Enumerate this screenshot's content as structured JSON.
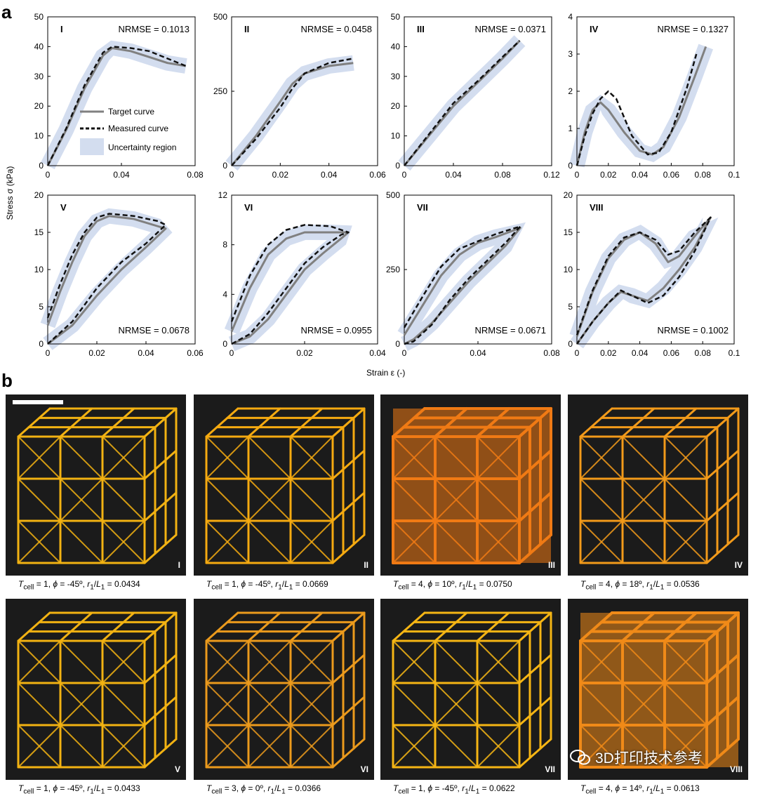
{
  "panel_a_label": "a",
  "panel_b_label": "b",
  "y_axis_label": "Stress σ (kPa)",
  "x_axis_label": "Strain ε (-)",
  "legend": {
    "target": "Target curve",
    "measured": "Measured curve",
    "uncertainty": "Uncertainty region"
  },
  "colors": {
    "target": "#808080",
    "measured": "#111111",
    "band": "#d3ddef"
  },
  "chart_data": [
    {
      "type": "line",
      "id": "I",
      "nrmse": "NRMSE = 0.1013",
      "xlim": [
        0,
        0.08
      ],
      "ylim": [
        0,
        50
      ],
      "xticks": [
        "0",
        "0.04",
        "0.08"
      ],
      "xtick_vals": [
        0,
        0.04,
        0.08
      ],
      "yticks": [
        "0",
        "10",
        "20",
        "30",
        "40",
        "50"
      ],
      "ytick_vals": [
        0,
        10,
        20,
        30,
        40,
        50
      ],
      "target": [
        [
          0,
          0
        ],
        [
          0.01,
          12
        ],
        [
          0.02,
          26
        ],
        [
          0.03,
          37
        ],
        [
          0.035,
          39.5
        ],
        [
          0.045,
          38.5
        ],
        [
          0.055,
          36.5
        ],
        [
          0.065,
          34.5
        ],
        [
          0.075,
          33.5
        ]
      ],
      "measured": [
        [
          0,
          0
        ],
        [
          0.01,
          12.5
        ],
        [
          0.02,
          27
        ],
        [
          0.03,
          38
        ],
        [
          0.035,
          40
        ],
        [
          0.045,
          39.5
        ],
        [
          0.055,
          38.5
        ],
        [
          0.065,
          36
        ],
        [
          0.075,
          33.5
        ]
      ]
    },
    {
      "type": "line",
      "id": "II",
      "nrmse": "NRMSE = 0.0458",
      "xlim": [
        0,
        0.06
      ],
      "ylim": [
        0,
        500
      ],
      "xticks": [
        "0",
        "0.02",
        "0.04",
        "0.06"
      ],
      "xtick_vals": [
        0,
        0.02,
        0.04,
        0.06
      ],
      "yticks": [
        "0",
        "250",
        "500"
      ],
      "ytick_vals": [
        0,
        250,
        500
      ],
      "target": [
        [
          0,
          0
        ],
        [
          0.01,
          100
        ],
        [
          0.02,
          215
        ],
        [
          0.025,
          275
        ],
        [
          0.03,
          310
        ],
        [
          0.04,
          335
        ],
        [
          0.05,
          345
        ]
      ],
      "measured": [
        [
          0,
          0
        ],
        [
          0.01,
          90
        ],
        [
          0.02,
          195
        ],
        [
          0.025,
          260
        ],
        [
          0.03,
          310
        ],
        [
          0.04,
          345
        ],
        [
          0.05,
          360
        ]
      ]
    },
    {
      "type": "line",
      "id": "III",
      "nrmse": "NRMSE = 0.0371",
      "xlim": [
        0,
        0.12
      ],
      "ylim": [
        0,
        50
      ],
      "xticks": [
        "0",
        "0.04",
        "0.08",
        "0.12"
      ],
      "xtick_vals": [
        0,
        0.04,
        0.08,
        0.12
      ],
      "yticks": [
        "0",
        "10",
        "20",
        "30",
        "40",
        "50"
      ],
      "ytick_vals": [
        0,
        10,
        20,
        30,
        40,
        50
      ],
      "target": [
        [
          0,
          0
        ],
        [
          0.02,
          10
        ],
        [
          0.04,
          20
        ],
        [
          0.06,
          28
        ],
        [
          0.08,
          36
        ],
        [
          0.094,
          42
        ]
      ],
      "measured": [
        [
          0,
          0
        ],
        [
          0.02,
          10.5
        ],
        [
          0.04,
          21
        ],
        [
          0.06,
          28.5
        ],
        [
          0.08,
          36.5
        ],
        [
          0.094,
          42
        ]
      ]
    },
    {
      "type": "line",
      "id": "IV",
      "nrmse": "NRMSE = 0.1327",
      "xlim": [
        0,
        0.1
      ],
      "ylim": [
        0,
        4
      ],
      "xticks": [
        "0",
        "0.02",
        "0.04",
        "0.06",
        "0.08",
        "0.1"
      ],
      "xtick_vals": [
        0,
        0.02,
        0.04,
        0.06,
        0.08,
        0.1
      ],
      "yticks": [
        "0",
        "1",
        "2",
        "3",
        "4"
      ],
      "ytick_vals": [
        0,
        1,
        2,
        3,
        4
      ],
      "target": [
        [
          0,
          0
        ],
        [
          0.005,
          0.9
        ],
        [
          0.01,
          1.5
        ],
        [
          0.015,
          1.7
        ],
        [
          0.02,
          1.5
        ],
        [
          0.03,
          0.9
        ],
        [
          0.04,
          0.4
        ],
        [
          0.048,
          0.3
        ],
        [
          0.055,
          0.5
        ],
        [
          0.065,
          1.3
        ],
        [
          0.075,
          2.4
        ],
        [
          0.082,
          3.2
        ]
      ],
      "measured": [
        [
          0,
          0
        ],
        [
          0.005,
          0.8
        ],
        [
          0.01,
          1.4
        ],
        [
          0.015,
          1.8
        ],
        [
          0.02,
          2.0
        ],
        [
          0.025,
          1.8
        ],
        [
          0.035,
          0.8
        ],
        [
          0.045,
          0.3
        ],
        [
          0.052,
          0.35
        ],
        [
          0.06,
          0.9
        ],
        [
          0.07,
          2.1
        ],
        [
          0.076,
          3.0
        ]
      ]
    },
    {
      "type": "line",
      "id": "V",
      "nrmse": "NRMSE = 0.0678",
      "xlim": [
        0,
        0.06
      ],
      "ylim": [
        0,
        20
      ],
      "xticks": [
        "0",
        "0.02",
        "0.04",
        "0.06"
      ],
      "xtick_vals": [
        0,
        0.02,
        0.04,
        0.06
      ],
      "yticks": [
        "0",
        "5",
        "10",
        "15",
        "20"
      ],
      "ytick_vals": [
        0,
        5,
        10,
        15,
        20
      ],
      "target": [
        [
          0,
          2.5
        ],
        [
          0.005,
          7
        ],
        [
          0.01,
          11
        ],
        [
          0.015,
          14.5
        ],
        [
          0.02,
          16.5
        ],
        [
          0.025,
          17.2
        ],
        [
          0.035,
          16.8
        ],
        [
          0.045,
          15.8
        ],
        [
          0.048,
          15.5
        ],
        [
          0.04,
          13
        ],
        [
          0.03,
          10
        ],
        [
          0.02,
          6.5
        ],
        [
          0.01,
          2.5
        ],
        [
          0,
          0
        ]
      ],
      "measured": [
        [
          0,
          3.5
        ],
        [
          0.005,
          8
        ],
        [
          0.01,
          12
        ],
        [
          0.015,
          15
        ],
        [
          0.02,
          17
        ],
        [
          0.025,
          17.5
        ],
        [
          0.035,
          17.2
        ],
        [
          0.045,
          16.5
        ],
        [
          0.048,
          16
        ],
        [
          0.04,
          13.5
        ],
        [
          0.03,
          11
        ],
        [
          0.02,
          7.5
        ],
        [
          0.01,
          3
        ],
        [
          0,
          0
        ]
      ]
    },
    {
      "type": "line",
      "id": "VI",
      "nrmse": "NRMSE = 0.0955",
      "xlim": [
        0,
        0.04
      ],
      "ylim": [
        0,
        12
      ],
      "xticks": [
        "0",
        "0.02",
        "0.04"
      ],
      "xtick_vals": [
        0,
        0.02,
        0.04
      ],
      "yticks": [
        "0",
        "4",
        "8",
        "12"
      ],
      "ytick_vals": [
        0,
        4,
        8,
        12
      ],
      "target": [
        [
          0,
          1
        ],
        [
          0.005,
          4.5
        ],
        [
          0.01,
          7.2
        ],
        [
          0.015,
          8.5
        ],
        [
          0.02,
          9
        ],
        [
          0.027,
          9
        ],
        [
          0.032,
          9
        ],
        [
          0.03,
          8.5
        ],
        [
          0.025,
          7.3
        ],
        [
          0.02,
          6
        ],
        [
          0.015,
          4
        ],
        [
          0.01,
          2
        ],
        [
          0.005,
          0.6
        ],
        [
          0,
          0
        ]
      ],
      "measured": [
        [
          0,
          1.8
        ],
        [
          0.005,
          5.5
        ],
        [
          0.01,
          8
        ],
        [
          0.015,
          9.2
        ],
        [
          0.02,
          9.6
        ],
        [
          0.027,
          9.5
        ],
        [
          0.032,
          9
        ],
        [
          0.03,
          8.8
        ],
        [
          0.025,
          7.8
        ],
        [
          0.02,
          6.5
        ],
        [
          0.015,
          4.5
        ],
        [
          0.01,
          2.5
        ],
        [
          0.005,
          0.8
        ],
        [
          0,
          0
        ]
      ]
    },
    {
      "type": "line",
      "id": "VII",
      "nrmse": "NRMSE = 0.0671",
      "xlim": [
        0,
        0.08
      ],
      "ylim": [
        0,
        500
      ],
      "xticks": [
        "0",
        "0.04",
        "0.08"
      ],
      "xtick_vals": [
        0,
        0.04,
        0.08
      ],
      "yticks": [
        "0",
        "250",
        "500"
      ],
      "ytick_vals": [
        0,
        250,
        500
      ],
      "target": [
        [
          0,
          30
        ],
        [
          0.01,
          130
        ],
        [
          0.02,
          230
        ],
        [
          0.03,
          300
        ],
        [
          0.04,
          340
        ],
        [
          0.05,
          360
        ],
        [
          0.063,
          390
        ],
        [
          0.055,
          330
        ],
        [
          0.045,
          270
        ],
        [
          0.035,
          210
        ],
        [
          0.025,
          140
        ],
        [
          0.015,
          70
        ],
        [
          0.005,
          15
        ],
        [
          0,
          0
        ]
      ],
      "measured": [
        [
          0,
          55
        ],
        [
          0.01,
          160
        ],
        [
          0.02,
          260
        ],
        [
          0.03,
          320
        ],
        [
          0.04,
          345
        ],
        [
          0.05,
          370
        ],
        [
          0.063,
          395
        ],
        [
          0.055,
          340
        ],
        [
          0.045,
          280
        ],
        [
          0.035,
          220
        ],
        [
          0.025,
          150
        ],
        [
          0.015,
          65
        ],
        [
          0.005,
          8
        ],
        [
          0,
          0
        ]
      ]
    },
    {
      "type": "line",
      "id": "VIII",
      "nrmse": "NRMSE = 0.1002",
      "xlim": [
        0,
        0.1
      ],
      "ylim": [
        0,
        20
      ],
      "xticks": [
        "0",
        "0.02",
        "0.04",
        "0.06",
        "0.08",
        "0.1"
      ],
      "xtick_vals": [
        0,
        0.02,
        0.04,
        0.06,
        0.08,
        0.1
      ],
      "yticks": [
        "0",
        "5",
        "10",
        "15",
        "20"
      ],
      "ytick_vals": [
        0,
        5,
        10,
        15,
        20
      ],
      "target": [
        [
          0,
          1
        ],
        [
          0.01,
          7
        ],
        [
          0.02,
          11.5
        ],
        [
          0.03,
          14
        ],
        [
          0.04,
          15
        ],
        [
          0.05,
          13.5
        ],
        [
          0.058,
          11
        ],
        [
          0.065,
          11.8
        ],
        [
          0.075,
          14.5
        ],
        [
          0.085,
          17
        ],
        [
          0.075,
          13
        ],
        [
          0.065,
          10
        ],
        [
          0.055,
          7.5
        ],
        [
          0.045,
          5.8
        ],
        [
          0.035,
          6.5
        ],
        [
          0.028,
          7
        ],
        [
          0.02,
          5.5
        ],
        [
          0.01,
          3
        ],
        [
          0,
          0
        ]
      ],
      "measured": [
        [
          0,
          1.2
        ],
        [
          0.01,
          7.2
        ],
        [
          0.02,
          11.8
        ],
        [
          0.03,
          14.3
        ],
        [
          0.04,
          15
        ],
        [
          0.05,
          14
        ],
        [
          0.058,
          12
        ],
        [
          0.065,
          12.5
        ],
        [
          0.075,
          15
        ],
        [
          0.085,
          17
        ],
        [
          0.075,
          12.5
        ],
        [
          0.065,
          9
        ],
        [
          0.055,
          6.5
        ],
        [
          0.045,
          5.5
        ],
        [
          0.035,
          6.5
        ],
        [
          0.028,
          7.2
        ],
        [
          0.02,
          5.5
        ],
        [
          0.01,
          3
        ],
        [
          0,
          0
        ]
      ]
    }
  ],
  "photos": [
    {
      "roman": "I",
      "T": "1",
      "phi": "-45º",
      "r": "0.0434",
      "tone": "#f2b212"
    },
    {
      "roman": "II",
      "T": "1",
      "phi": "-45º",
      "r": "0.0669",
      "tone": "#f5aa10"
    },
    {
      "roman": "III",
      "T": "4",
      "phi": "10º",
      "r": "0.0750",
      "tone": "#f07a14"
    },
    {
      "roman": "IV",
      "T": "4",
      "phi": "18º",
      "r": "0.0536",
      "tone": "#f29a1a"
    },
    {
      "roman": "V",
      "T": "1",
      "phi": "-45º",
      "r": "0.0433",
      "tone": "#f2b212"
    },
    {
      "roman": "VI",
      "T": "3",
      "phi": "0º",
      "r": "0.0366",
      "tone": "#eb9a1c"
    },
    {
      "roman": "VII",
      "T": "1",
      "phi": "-45º",
      "r": "0.0622",
      "tone": "#f5b514"
    },
    {
      "roman": "VIII",
      "T": "4",
      "phi": "14º",
      "r": "0.0613",
      "tone": "#f08a18"
    }
  ],
  "caption_parts": {
    "t": "T",
    "t_sub": "cell",
    "phi": "ϕ",
    "r": "r",
    "r_sub": "1",
    "l": "L",
    "l_sub": "1"
  },
  "watermark": "3D打印技术参考"
}
